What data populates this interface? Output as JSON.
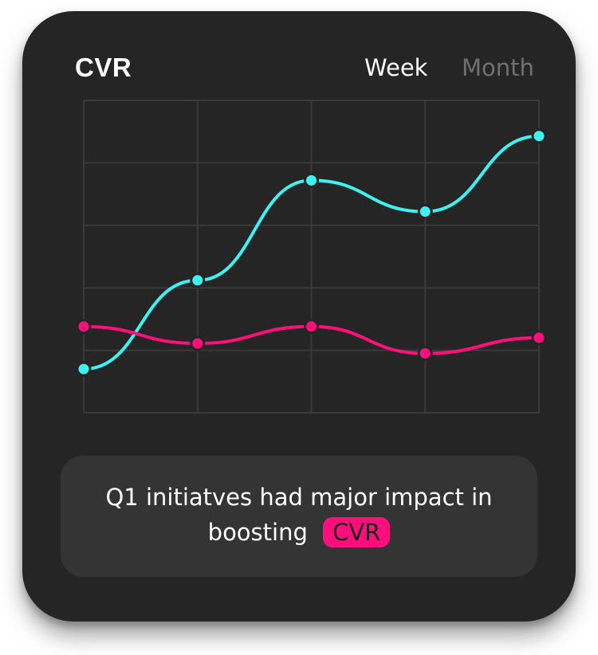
{
  "card": {
    "title": "CVR",
    "tabs": [
      {
        "label": "Week",
        "active": true
      },
      {
        "label": "Month",
        "active": false
      }
    ],
    "caption": {
      "text": "Q1 initiatves had major impact in boosting",
      "highlight": "CVR"
    }
  },
  "colors": {
    "background": "#252525",
    "series_cyan": "#3ff2f2",
    "series_pink": "#ff0f7b",
    "grid": "#3a3a3a",
    "caption_bg": "#343434"
  },
  "chart_data": {
    "type": "line",
    "title": "",
    "xlabel": "",
    "ylabel": "",
    "x": [
      1,
      2,
      3,
      4,
      5
    ],
    "ylim": [
      0,
      5
    ],
    "grid": true,
    "series": [
      {
        "color": "#3ff2f2",
        "values": [
          0.7,
          2.12,
          3.72,
          3.22,
          4.43
        ]
      },
      {
        "color": "#ff0f7b",
        "values": [
          1.38,
          1.11,
          1.38,
          0.95,
          1.2
        ]
      }
    ]
  }
}
